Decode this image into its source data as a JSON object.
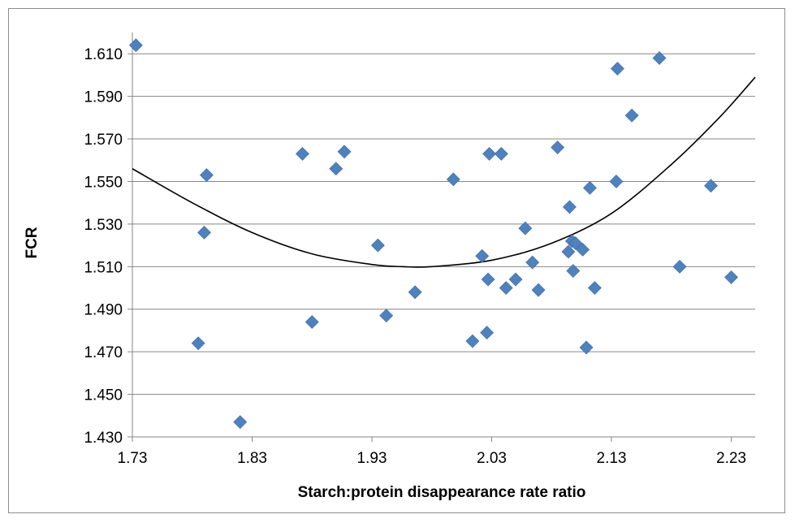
{
  "chart_data": {
    "type": "scatter",
    "title": "",
    "xlabel": "Starch:protein disappearance rate ratio",
    "ylabel": "FCR",
    "xlim": [
      1.73,
      2.25
    ],
    "ylim": [
      1.43,
      1.62
    ],
    "x_ticks": [
      "1.73",
      "1.83",
      "1.93",
      "2.03",
      "2.13",
      "2.23"
    ],
    "y_ticks": [
      "1.430",
      "1.450",
      "1.470",
      "1.490",
      "1.510",
      "1.530",
      "1.550",
      "1.570",
      "1.590",
      "1.610"
    ],
    "grid": "horizontal",
    "legend": "none",
    "marker": "diamond",
    "colors": {
      "marker": "#4F81BD",
      "trendline": "#000000",
      "gridline": "#868686"
    },
    "series": [
      {
        "x": [
          1.733,
          1.785,
          1.79,
          1.792,
          1.82,
          1.872,
          1.88,
          1.9,
          1.907,
          1.935,
          1.942,
          1.966,
          1.998,
          2.014,
          2.022,
          2.026,
          2.027,
          2.028,
          2.038,
          2.042,
          2.05,
          2.058,
          2.064,
          2.069,
          2.085,
          2.094,
          2.095,
          2.097,
          2.098,
          2.1,
          2.106,
          2.109,
          2.112,
          2.116,
          2.134,
          2.135,
          2.147,
          2.17,
          2.187,
          2.213,
          2.23
        ],
        "y": [
          1.614,
          1.474,
          1.526,
          1.553,
          1.437,
          1.563,
          1.484,
          1.556,
          1.564,
          1.52,
          1.487,
          1.498,
          1.551,
          1.475,
          1.515,
          1.479,
          1.504,
          1.563,
          1.563,
          1.5,
          1.504,
          1.528,
          1.512,
          1.499,
          1.566,
          1.517,
          1.538,
          1.522,
          1.508,
          1.521,
          1.518,
          1.472,
          1.547,
          1.5,
          1.55,
          1.603,
          1.581,
          1.608,
          1.51,
          1.548,
          1.505
        ]
      }
    ],
    "trendline": {
      "type": "polynomial-2",
      "x": [
        1.73,
        1.78,
        1.83,
        1.88,
        1.93,
        1.955,
        1.98,
        2.03,
        2.08,
        2.13,
        2.18,
        2.22,
        2.25
      ],
      "y": [
        1.556,
        1.54,
        1.526,
        1.516,
        1.511,
        1.51,
        1.51,
        1.513,
        1.521,
        1.535,
        1.558,
        1.58,
        1.599
      ]
    }
  }
}
